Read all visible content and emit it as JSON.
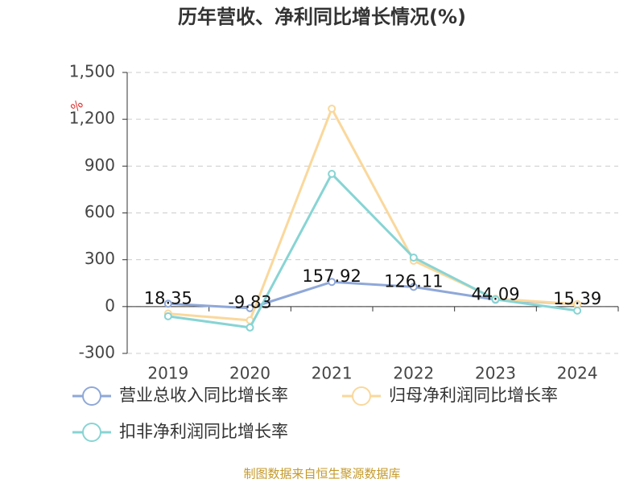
{
  "chart_data": {
    "type": "line",
    "title": "历年营收、净利同比增长情况(%)",
    "unit": "%",
    "categories": [
      "2019",
      "2020",
      "2021",
      "2022",
      "2023",
      "2024"
    ],
    "series": [
      {
        "name": "营业总收入同比增长率",
        "color": "#8fa8d8",
        "values": [
          18.35,
          -9.83,
          157.92,
          126.11,
          44.09,
          15.39
        ],
        "show_labels": true
      },
      {
        "name": "归母净利润同比增长率",
        "color": "#fad89c",
        "values": [
          -45,
          -88,
          1268,
          294,
          50,
          15
        ],
        "show_labels": false
      },
      {
        "name": "扣非净利润同比增长率",
        "color": "#88d4d4",
        "values": [
          -62,
          -134,
          850,
          314,
          46,
          -26
        ],
        "show_labels": false
      }
    ],
    "ylim": [
      -300,
      1500
    ],
    "yticks": [
      -300,
      0,
      300,
      600,
      900,
      {
        "value": 1200,
        "label": "1,200"
      },
      {
        "value": 1500,
        "label": "1,500"
      }
    ],
    "grid": true,
    "source": "制图数据来自恒生聚源数据库"
  }
}
